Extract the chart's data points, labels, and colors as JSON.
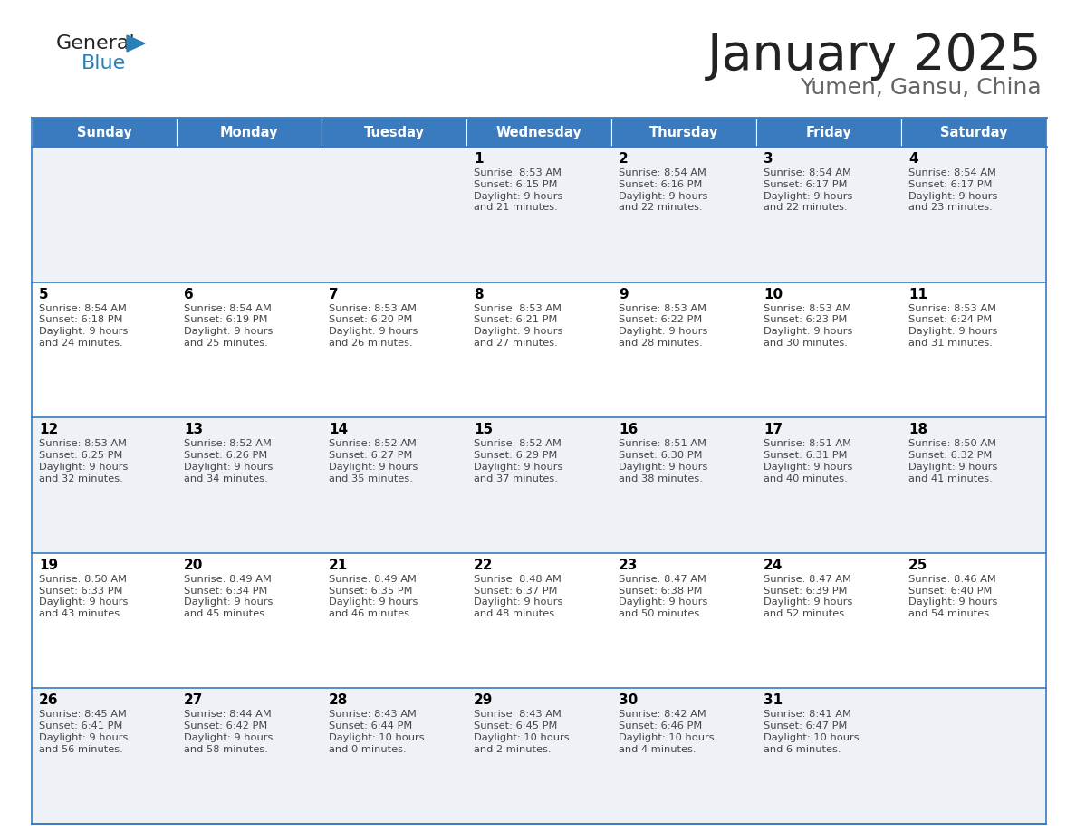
{
  "title": "January 2025",
  "subtitle": "Yumen, Gansu, China",
  "days_of_week": [
    "Sunday",
    "Monday",
    "Tuesday",
    "Wednesday",
    "Thursday",
    "Friday",
    "Saturday"
  ],
  "header_bg": "#3a7abf",
  "header_text": "#ffffff",
  "row_bg_odd": "#eef2f7",
  "row_bg_even": "#ffffff",
  "border_color": "#3a7abf",
  "day_num_color": "#000000",
  "cell_text_color": "#444444",
  "title_color": "#222222",
  "subtitle_color": "#666666",
  "calendar": [
    [
      {
        "day": "",
        "sunrise": "",
        "sunset": "",
        "daylight_h": "",
        "daylight_m": ""
      },
      {
        "day": "",
        "sunrise": "",
        "sunset": "",
        "daylight_h": "",
        "daylight_m": ""
      },
      {
        "day": "",
        "sunrise": "",
        "sunset": "",
        "daylight_h": "",
        "daylight_m": ""
      },
      {
        "day": "1",
        "sunrise": "8:53 AM",
        "sunset": "6:15 PM",
        "daylight_h": "9",
        "daylight_m": "21"
      },
      {
        "day": "2",
        "sunrise": "8:54 AM",
        "sunset": "6:16 PM",
        "daylight_h": "9",
        "daylight_m": "22"
      },
      {
        "day": "3",
        "sunrise": "8:54 AM",
        "sunset": "6:17 PM",
        "daylight_h": "9",
        "daylight_m": "22"
      },
      {
        "day": "4",
        "sunrise": "8:54 AM",
        "sunset": "6:17 PM",
        "daylight_h": "9",
        "daylight_m": "23"
      }
    ],
    [
      {
        "day": "5",
        "sunrise": "8:54 AM",
        "sunset": "6:18 PM",
        "daylight_h": "9",
        "daylight_m": "24"
      },
      {
        "day": "6",
        "sunrise": "8:54 AM",
        "sunset": "6:19 PM",
        "daylight_h": "9",
        "daylight_m": "25"
      },
      {
        "day": "7",
        "sunrise": "8:53 AM",
        "sunset": "6:20 PM",
        "daylight_h": "9",
        "daylight_m": "26"
      },
      {
        "day": "8",
        "sunrise": "8:53 AM",
        "sunset": "6:21 PM",
        "daylight_h": "9",
        "daylight_m": "27"
      },
      {
        "day": "9",
        "sunrise": "8:53 AM",
        "sunset": "6:22 PM",
        "daylight_h": "9",
        "daylight_m": "28"
      },
      {
        "day": "10",
        "sunrise": "8:53 AM",
        "sunset": "6:23 PM",
        "daylight_h": "9",
        "daylight_m": "30"
      },
      {
        "day": "11",
        "sunrise": "8:53 AM",
        "sunset": "6:24 PM",
        "daylight_h": "9",
        "daylight_m": "31"
      }
    ],
    [
      {
        "day": "12",
        "sunrise": "8:53 AM",
        "sunset": "6:25 PM",
        "daylight_h": "9",
        "daylight_m": "32"
      },
      {
        "day": "13",
        "sunrise": "8:52 AM",
        "sunset": "6:26 PM",
        "daylight_h": "9",
        "daylight_m": "34"
      },
      {
        "day": "14",
        "sunrise": "8:52 AM",
        "sunset": "6:27 PM",
        "daylight_h": "9",
        "daylight_m": "35"
      },
      {
        "day": "15",
        "sunrise": "8:52 AM",
        "sunset": "6:29 PM",
        "daylight_h": "9",
        "daylight_m": "37"
      },
      {
        "day": "16",
        "sunrise": "8:51 AM",
        "sunset": "6:30 PM",
        "daylight_h": "9",
        "daylight_m": "38"
      },
      {
        "day": "17",
        "sunrise": "8:51 AM",
        "sunset": "6:31 PM",
        "daylight_h": "9",
        "daylight_m": "40"
      },
      {
        "day": "18",
        "sunrise": "8:50 AM",
        "sunset": "6:32 PM",
        "daylight_h": "9",
        "daylight_m": "41"
      }
    ],
    [
      {
        "day": "19",
        "sunrise": "8:50 AM",
        "sunset": "6:33 PM",
        "daylight_h": "9",
        "daylight_m": "43"
      },
      {
        "day": "20",
        "sunrise": "8:49 AM",
        "sunset": "6:34 PM",
        "daylight_h": "9",
        "daylight_m": "45"
      },
      {
        "day": "21",
        "sunrise": "8:49 AM",
        "sunset": "6:35 PM",
        "daylight_h": "9",
        "daylight_m": "46"
      },
      {
        "day": "22",
        "sunrise": "8:48 AM",
        "sunset": "6:37 PM",
        "daylight_h": "9",
        "daylight_m": "48"
      },
      {
        "day": "23",
        "sunrise": "8:47 AM",
        "sunset": "6:38 PM",
        "daylight_h": "9",
        "daylight_m": "50"
      },
      {
        "day": "24",
        "sunrise": "8:47 AM",
        "sunset": "6:39 PM",
        "daylight_h": "9",
        "daylight_m": "52"
      },
      {
        "day": "25",
        "sunrise": "8:46 AM",
        "sunset": "6:40 PM",
        "daylight_h": "9",
        "daylight_m": "54"
      }
    ],
    [
      {
        "day": "26",
        "sunrise": "8:45 AM",
        "sunset": "6:41 PM",
        "daylight_h": "9",
        "daylight_m": "56"
      },
      {
        "day": "27",
        "sunrise": "8:44 AM",
        "sunset": "6:42 PM",
        "daylight_h": "9",
        "daylight_m": "58"
      },
      {
        "day": "28",
        "sunrise": "8:43 AM",
        "sunset": "6:44 PM",
        "daylight_h": "10",
        "daylight_m": "0"
      },
      {
        "day": "29",
        "sunrise": "8:43 AM",
        "sunset": "6:45 PM",
        "daylight_h": "10",
        "daylight_m": "2"
      },
      {
        "day": "30",
        "sunrise": "8:42 AM",
        "sunset": "6:46 PM",
        "daylight_h": "10",
        "daylight_m": "4"
      },
      {
        "day": "31",
        "sunrise": "8:41 AM",
        "sunset": "6:47 PM",
        "daylight_h": "10",
        "daylight_m": "6"
      },
      {
        "day": "",
        "sunrise": "",
        "sunset": "",
        "daylight_h": "",
        "daylight_m": ""
      }
    ]
  ],
  "logo_text_general": "General",
  "logo_text_blue": "Blue",
  "logo_color_general": "#222222",
  "logo_color_blue": "#2980b9",
  "logo_triangle_color": "#2980b9"
}
